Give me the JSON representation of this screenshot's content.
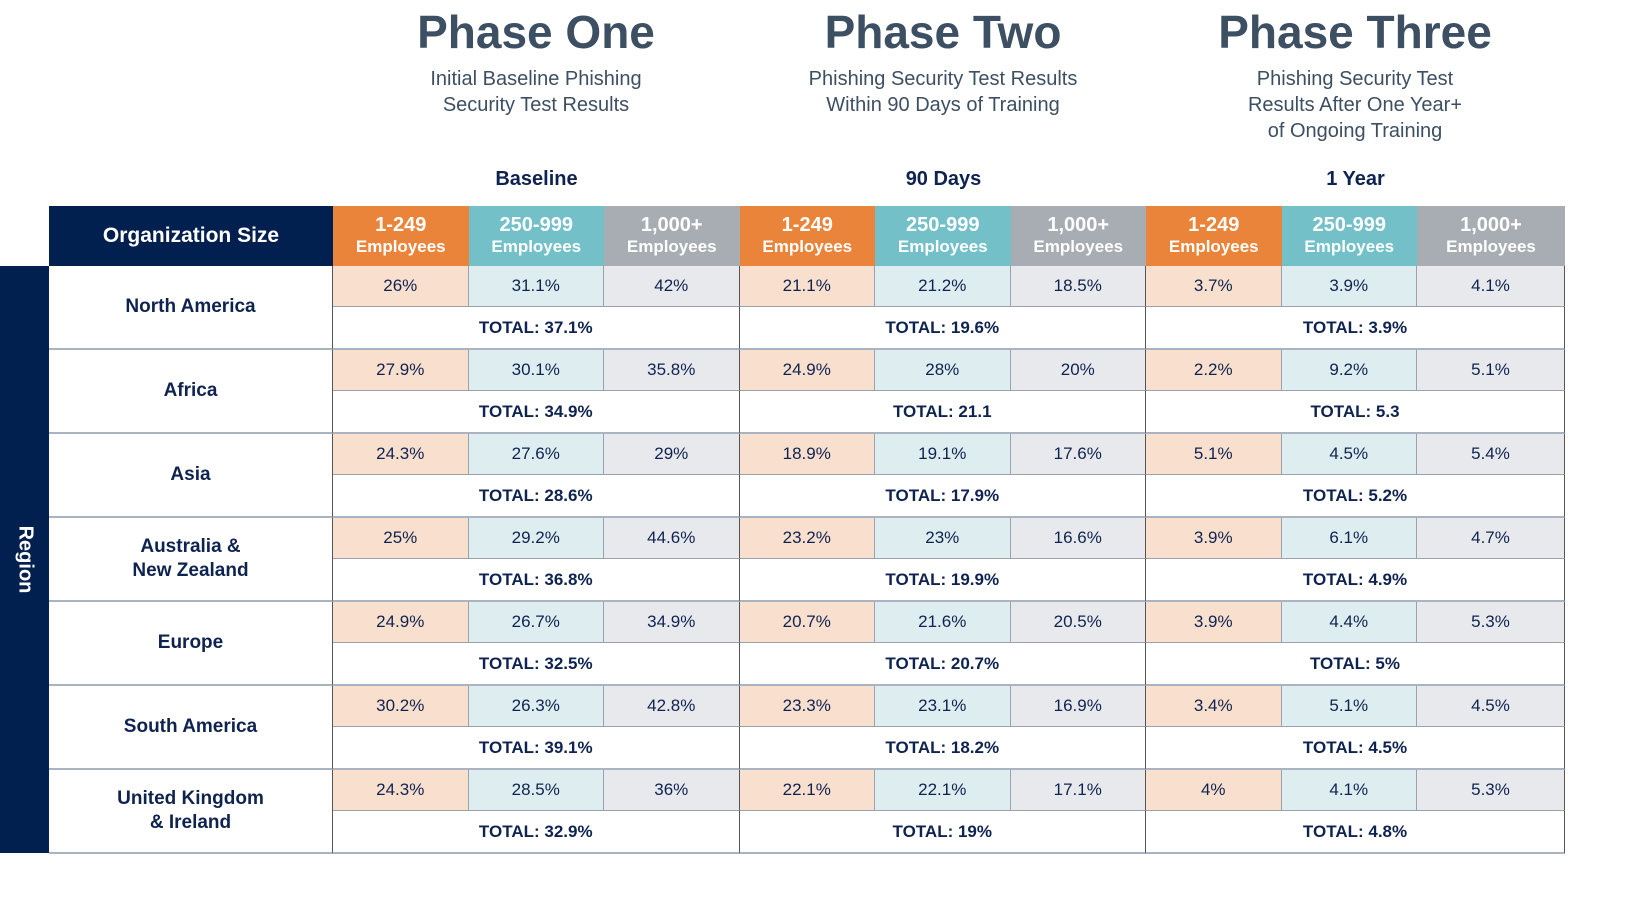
{
  "phases": [
    {
      "title": "Phase One",
      "subtitle": "Initial Baseline Phishing\nSecurity Test Results",
      "span_label": "Baseline"
    },
    {
      "title": "Phase Two",
      "subtitle": "Phishing Security Test Results\nWithin 90 Days of Training",
      "span_label": "90 Days"
    },
    {
      "title": "Phase Three",
      "subtitle": "Phishing Security Test\nResults After One Year+\nof Ongoing Training",
      "span_label": "1 Year"
    }
  ],
  "header": {
    "org_size": "Organization Size",
    "region": "Region",
    "sizes": [
      {
        "range": "1-249",
        "unit": "Employees"
      },
      {
        "range": "250-999",
        "unit": "Employees"
      },
      {
        "range": "1,000+",
        "unit": "Employees"
      }
    ]
  },
  "colors": {
    "navy": "#02204f",
    "orange": "#ea843b",
    "teal": "#74c0c9",
    "gray": "#a8adb3"
  },
  "rows": [
    {
      "region": "North America",
      "values": [
        [
          "26%",
          "31.1%",
          "42%"
        ],
        [
          "21.1%",
          "21.2%",
          "18.5%"
        ],
        [
          "3.7%",
          "3.9%",
          "4.1%"
        ]
      ],
      "totals": [
        "TOTAL: 37.1%",
        "TOTAL: 19.6%",
        "TOTAL: 3.9%"
      ]
    },
    {
      "region": "Africa",
      "values": [
        [
          "27.9%",
          "30.1%",
          "35.8%"
        ],
        [
          "24.9%",
          "28%",
          "20%"
        ],
        [
          "2.2%",
          "9.2%",
          "5.1%"
        ]
      ],
      "totals": [
        "TOTAL: 34.9%",
        "TOTAL: 21.1",
        "TOTAL: 5.3"
      ]
    },
    {
      "region": "Asia",
      "values": [
        [
          "24.3%",
          "27.6%",
          "29%"
        ],
        [
          "18.9%",
          "19.1%",
          "17.6%"
        ],
        [
          "5.1%",
          "4.5%",
          "5.4%"
        ]
      ],
      "totals": [
        "TOTAL: 28.6%",
        "TOTAL: 17.9%",
        "TOTAL: 5.2%"
      ]
    },
    {
      "region": "Australia &\nNew Zealand",
      "values": [
        [
          "25%",
          "29.2%",
          "44.6%"
        ],
        [
          "23.2%",
          "23%",
          "16.6%"
        ],
        [
          "3.9%",
          "6.1%",
          "4.7%"
        ]
      ],
      "totals": [
        "TOTAL: 36.8%",
        "TOTAL: 19.9%",
        "TOTAL: 4.9%"
      ]
    },
    {
      "region": "Europe",
      "values": [
        [
          "24.9%",
          "26.7%",
          "34.9%"
        ],
        [
          "20.7%",
          "21.6%",
          "20.5%"
        ],
        [
          "3.9%",
          "4.4%",
          "5.3%"
        ]
      ],
      "totals": [
        "TOTAL: 32.5%",
        "TOTAL: 20.7%",
        "TOTAL: 5%"
      ]
    },
    {
      "region": "South America",
      "values": [
        [
          "30.2%",
          "26.3%",
          "42.8%"
        ],
        [
          "23.3%",
          "23.1%",
          "16.9%"
        ],
        [
          "3.4%",
          "5.1%",
          "4.5%"
        ]
      ],
      "totals": [
        "TOTAL: 39.1%",
        "TOTAL: 18.2%",
        "TOTAL: 4.5%"
      ]
    },
    {
      "region": "United Kingdom\n& Ireland",
      "values": [
        [
          "24.3%",
          "28.5%",
          "36%"
        ],
        [
          "22.1%",
          "22.1%",
          "17.1%"
        ],
        [
          "4%",
          "4.1%",
          "5.3%"
        ]
      ],
      "totals": [
        "TOTAL: 32.9%",
        "TOTAL: 19%",
        "TOTAL: 4.8%"
      ]
    }
  ]
}
